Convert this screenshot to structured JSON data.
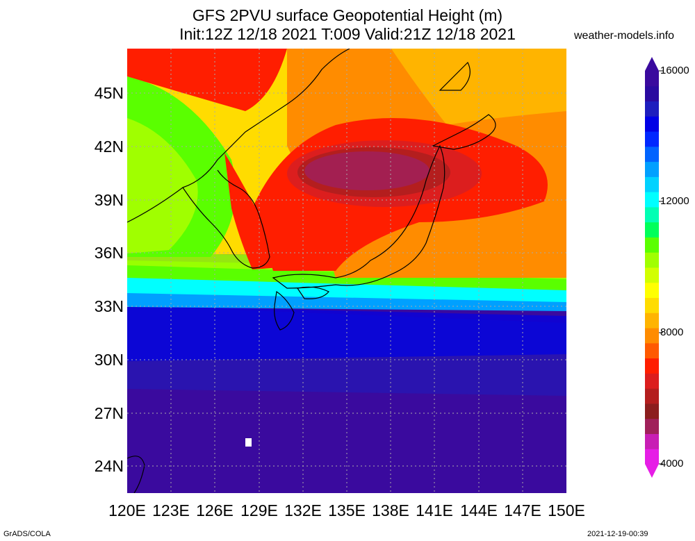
{
  "title": {
    "line1": "GFS 2PVU surface Geopotential Height (m)",
    "line2": "Init:12Z 12/18 2021 T:009 Valid:21Z 12/18 2021"
  },
  "site": "weather-models.info",
  "map": {
    "lat_labels": [
      "45N",
      "42N",
      "39N",
      "36N",
      "33N",
      "30N",
      "27N",
      "24N"
    ],
    "lon_labels": [
      "120E",
      "123E",
      "126E",
      "129E",
      "132E",
      "135E",
      "138E",
      "141E",
      "144E",
      "147E",
      "150E"
    ],
    "lat_range": [
      22.5,
      47.5
    ],
    "lon_range": [
      120,
      150
    ]
  },
  "colorbar": {
    "tick_labels": [
      "16000",
      "12000",
      "8000",
      "4000"
    ],
    "colors": [
      "#e61ee6",
      "#c81eb4",
      "#a0205a",
      "#8c1e1e",
      "#b41e1e",
      "#dc1e1e",
      "#ff1e00",
      "#ff5a00",
      "#ff8c00",
      "#ffb400",
      "#ffdc00",
      "#ffff00",
      "#d2ff00",
      "#a0ff00",
      "#5aff00",
      "#00ff5a",
      "#00ffb4",
      "#00ffff",
      "#00d2ff",
      "#00a0ff",
      "#0064ff",
      "#0028ff",
      "#0000e6",
      "#1e1ebe",
      "#2a0aa0",
      "#3a0a9e"
    ]
  },
  "footer": {
    "left": "GrADS/COLA",
    "right": "2021-12-19-00:39"
  }
}
